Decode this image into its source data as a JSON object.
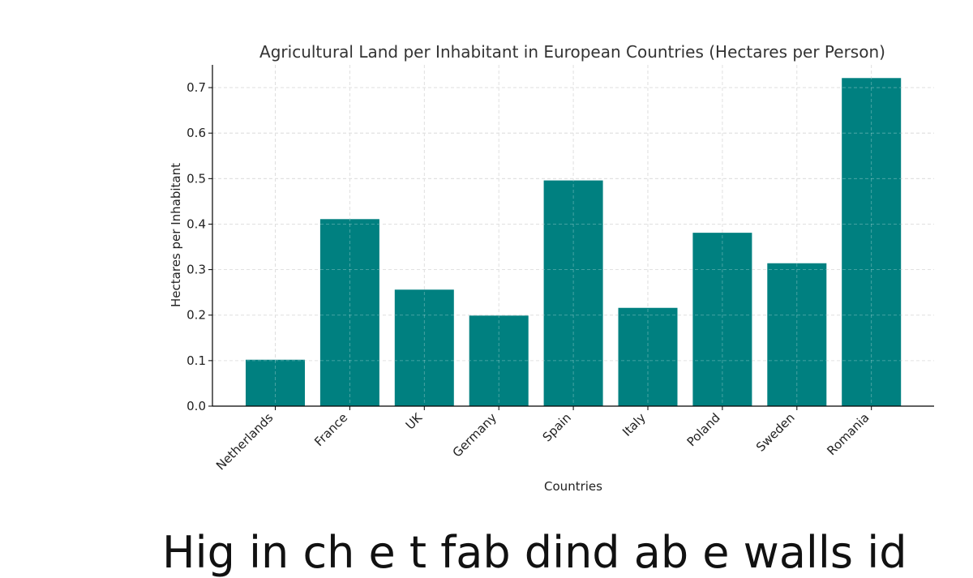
{
  "chart_data": {
    "type": "bar",
    "title": "Agricultural Land per Inhabitant in European Countries (Hectares per Person)",
    "xlabel": "Countries",
    "ylabel": "Hectares per Inhabitant",
    "categories": [
      "Netherlands",
      "France",
      "UK",
      "Germany",
      "Spain",
      "Italy",
      "Poland",
      "Sweden",
      "Romania"
    ],
    "values": [
      0.102,
      0.411,
      0.256,
      0.199,
      0.496,
      0.216,
      0.381,
      0.314,
      0.721
    ],
    "yticks": [
      "0.0",
      "0.1",
      "0.2",
      "0.3",
      "0.4",
      "0.5",
      "0.6",
      "0.7"
    ],
    "ylim": [
      0,
      0.75
    ],
    "grid": true,
    "bar_color": "#008080"
  },
  "caption": "Hig in ch e t fab dind ab e walls id"
}
